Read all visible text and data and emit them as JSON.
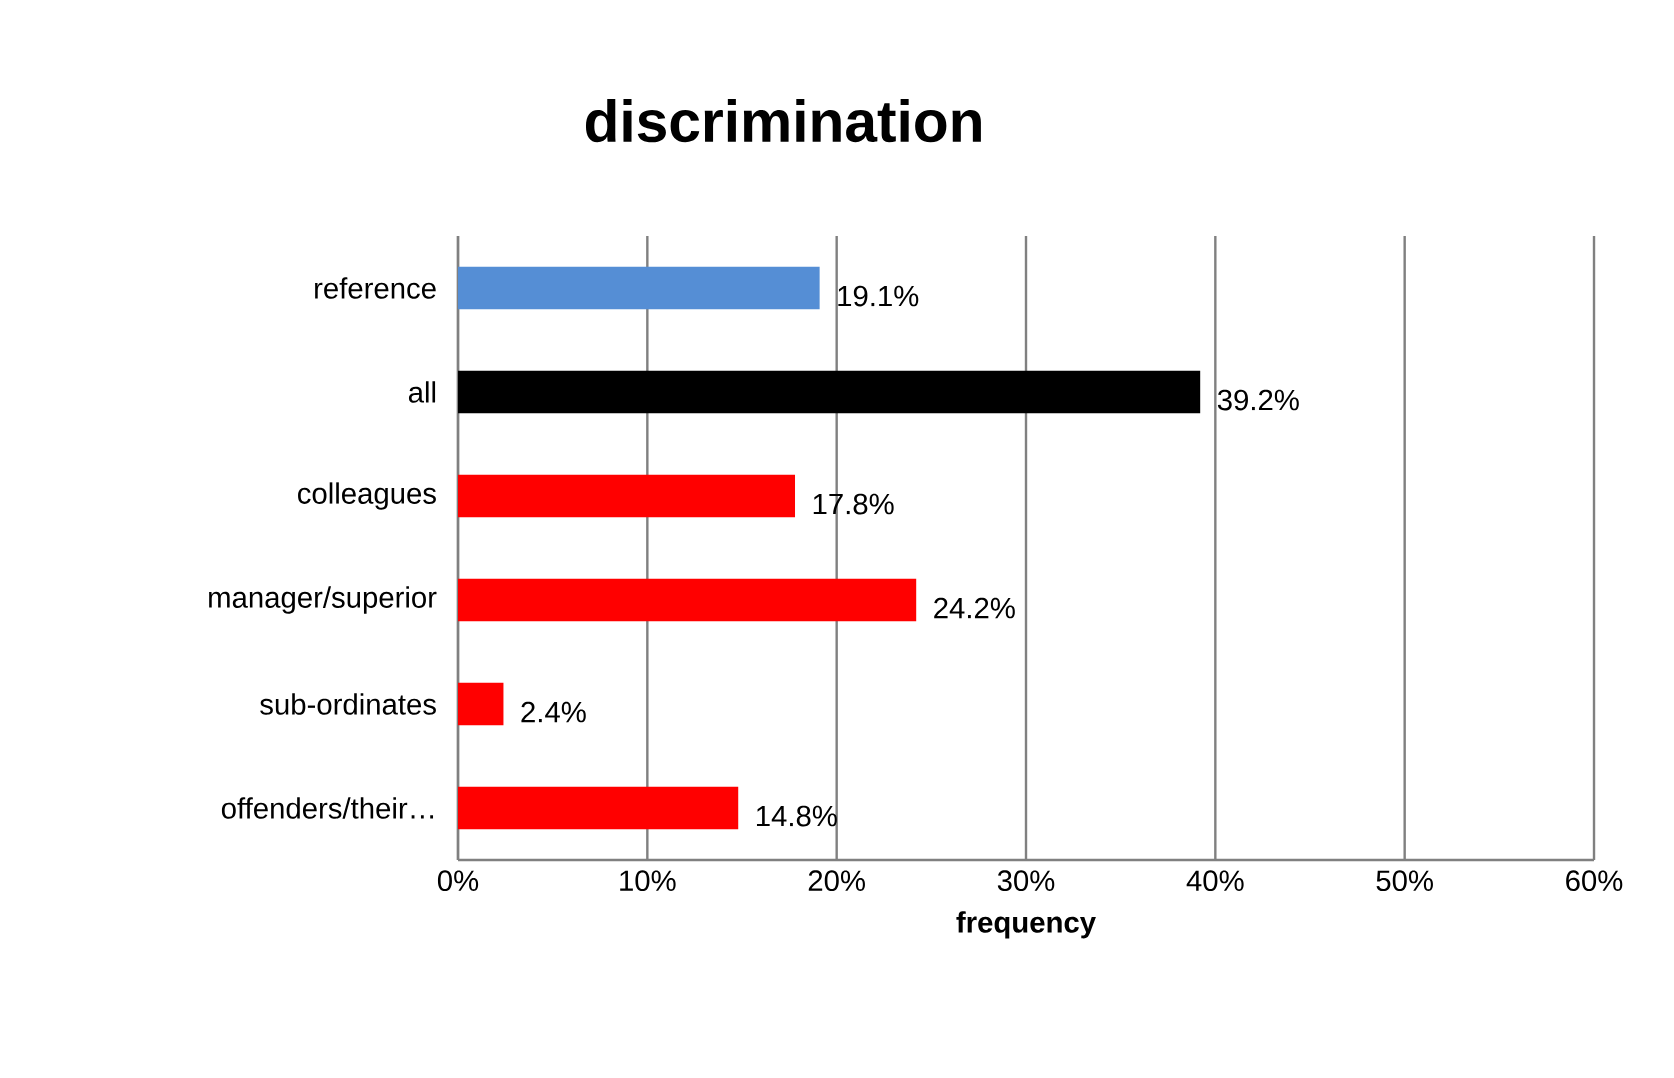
{
  "chart_data": {
    "type": "bar",
    "orientation": "horizontal",
    "title": "discrimination",
    "xlabel": "frequency",
    "categories": [
      "reference",
      "all",
      "colleagues",
      "manager/superior",
      "sub-ordinates",
      "offenders/their…"
    ],
    "values": [
      19.1,
      39.2,
      17.8,
      24.2,
      2.4,
      14.8
    ],
    "colors": [
      "#558ed5",
      "#000000",
      "#ff0000",
      "#ff0000",
      "#ff0000",
      "#ff0000"
    ],
    "value_labels": [
      "19.1%",
      "39.2%",
      "17.8%",
      "24.2%",
      "2.4%",
      "14.8%"
    ],
    "xlim": [
      0,
      60
    ],
    "xticks": [
      {
        "value": 0,
        "label": "0%"
      },
      {
        "value": 10,
        "label": "10%"
      },
      {
        "value": 20,
        "label": "20%"
      },
      {
        "value": 30,
        "label": "30%"
      },
      {
        "value": 40,
        "label": "40%"
      },
      {
        "value": 50,
        "label": "50%"
      },
      {
        "value": 60,
        "label": "60%"
      }
    ],
    "grid": "x"
  }
}
